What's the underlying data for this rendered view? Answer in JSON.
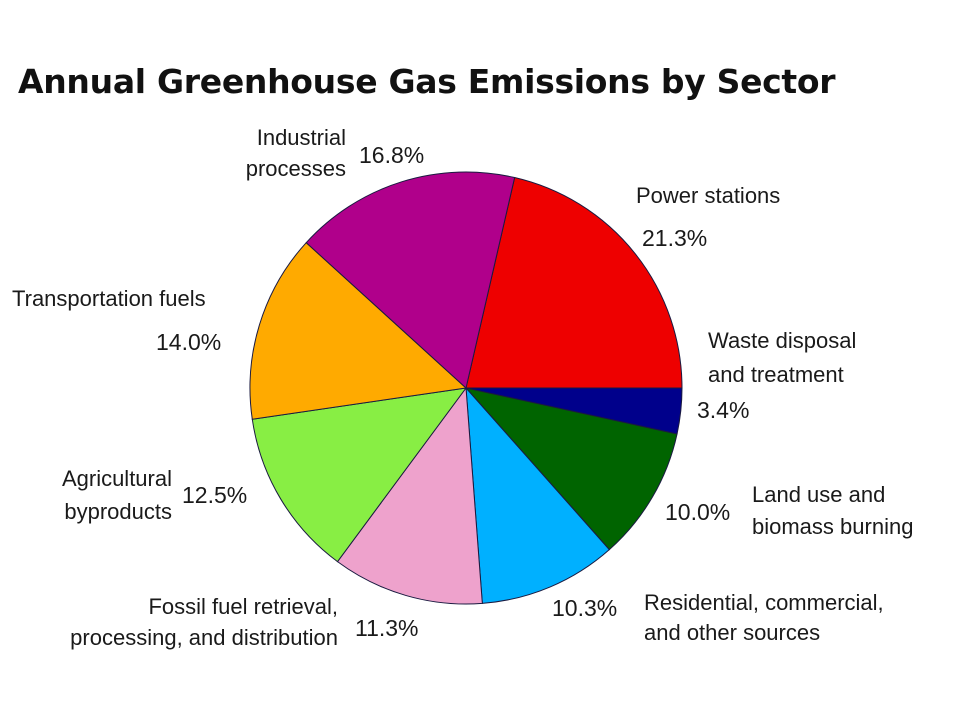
{
  "chart_data": {
    "type": "pie",
    "title": "Annual Greenhouse Gas Emissions by Sector",
    "slices": [
      {
        "label": [
          "Power stations"
        ],
        "value": 21.3,
        "value_label": "21.3%",
        "color": "#ee0000"
      },
      {
        "label": [
          "Waste disposal",
          "and treatment"
        ],
        "value": 3.4,
        "value_label": "3.4%",
        "color": "#00008b"
      },
      {
        "label": [
          "Land use and",
          "biomass burning"
        ],
        "value": 10.0,
        "value_label": "10.0%",
        "color": "#006400"
      },
      {
        "label": [
          "Residential, commercial,",
          "and other sources"
        ],
        "value": 10.3,
        "value_label": "10.3%",
        "color": "#00b0ff"
      },
      {
        "label": [
          "Fossil fuel retrieval,",
          "processing, and distribution"
        ],
        "value": 11.3,
        "value_label": "11.3%",
        "color": "#eea2cc"
      },
      {
        "label": [
          "Agricultural",
          "byproducts"
        ],
        "value": 12.5,
        "value_label": "12.5%",
        "color": "#88ee44"
      },
      {
        "label": [
          "Transportation fuels"
        ],
        "value": 14.0,
        "value_label": "14.0%",
        "color": "#ffaa00"
      },
      {
        "label": [
          "Industrial",
          "processes"
        ],
        "value": 16.8,
        "value_label": "16.8%",
        "color": "#b0008b"
      }
    ]
  }
}
